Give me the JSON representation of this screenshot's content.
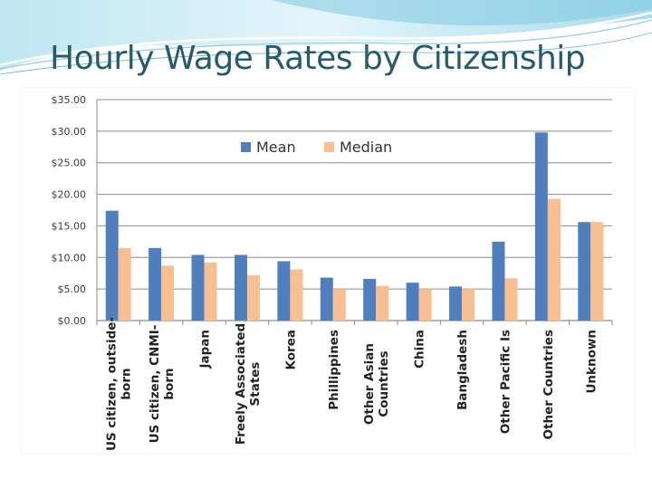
{
  "slide": {
    "title": "Hourly Wage Rates by Citizenship"
  },
  "colors": {
    "title": "#245b6e",
    "banner_light": "#d6eff6",
    "banner_mid": "#9fd3e6",
    "mean": "#4f7fbf",
    "median": "#f9bf90",
    "grid": "#8c8c8c"
  },
  "chart_data": {
    "type": "bar",
    "categories": [
      "US citizen, outside-born",
      "US citizen, CNMI-born",
      "Japan",
      "Freely Associated States",
      "Korea",
      "Phillippines",
      "Other Asian Countries",
      "China",
      "Bangladesh",
      "Other Pacific Is",
      "Other Countries",
      "Unknown"
    ],
    "category_lines": [
      [
        "US citizen, outside-",
        "born"
      ],
      [
        "US citizen, CNMI-",
        "born"
      ],
      [
        "Japan"
      ],
      [
        "Freely Associated",
        "States"
      ],
      [
        "Korea"
      ],
      [
        "Phillippines"
      ],
      [
        "Other Asian",
        "Countries"
      ],
      [
        "China"
      ],
      [
        "Bangladesh"
      ],
      [
        "Other Pacific Is"
      ],
      [
        "Other Countries"
      ],
      [
        "Unknown"
      ]
    ],
    "series": [
      {
        "name": "Mean",
        "values": [
          17.4,
          11.5,
          10.4,
          10.4,
          9.4,
          6.8,
          6.6,
          6.0,
          5.4,
          12.5,
          29.8,
          15.6
        ]
      },
      {
        "name": "Median",
        "values": [
          11.5,
          8.7,
          9.2,
          7.2,
          8.1,
          5.0,
          5.5,
          5.0,
          5.0,
          6.7,
          19.3,
          15.6
        ]
      }
    ],
    "ylim": [
      0,
      35
    ],
    "yticks": [
      0,
      5,
      10,
      15,
      20,
      25,
      30,
      35
    ],
    "ytick_labels": [
      "$0.00",
      "$5.00",
      "$10.00",
      "$15.00",
      "$20.00",
      "$25.00",
      "$30.00",
      "$35.00"
    ],
    "legend_position": "top-center",
    "grid": true
  }
}
